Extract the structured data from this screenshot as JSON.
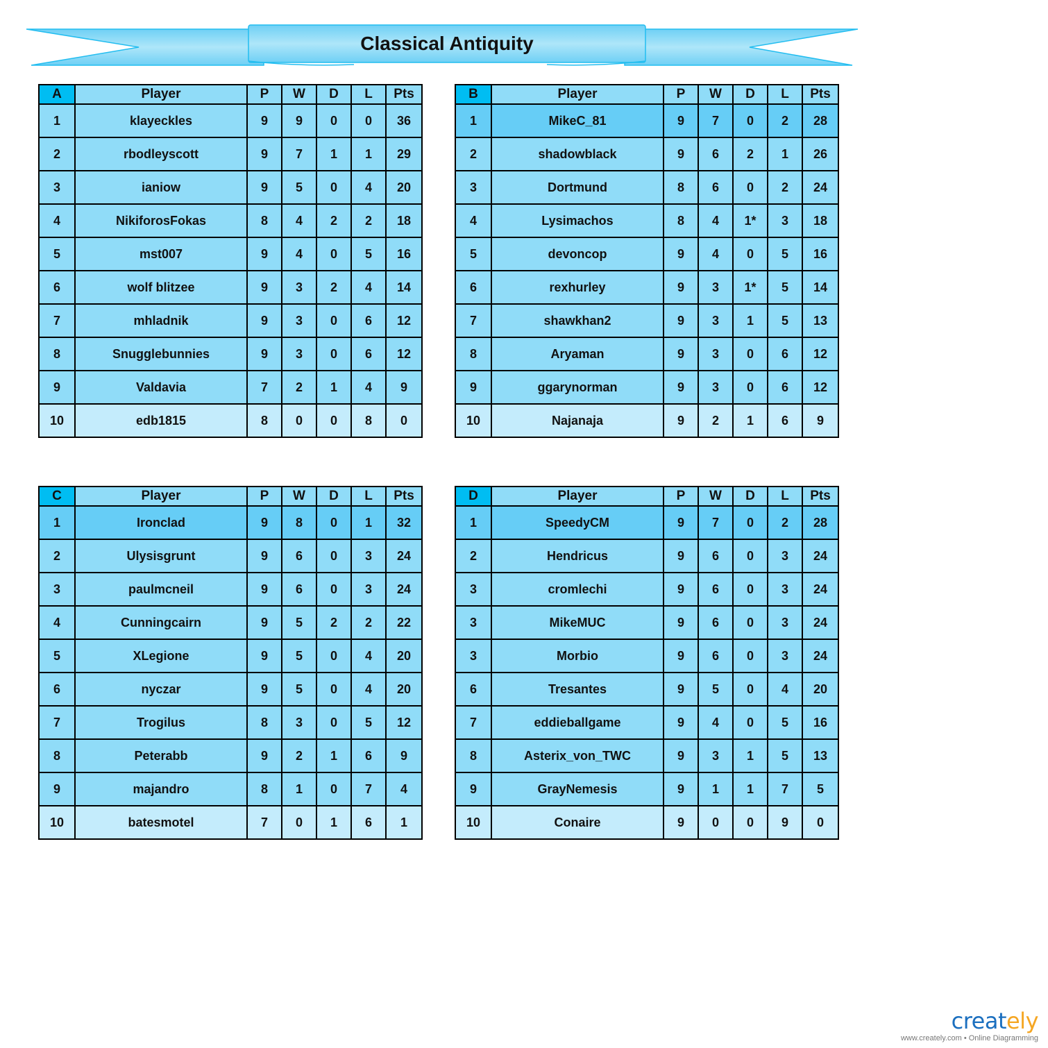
{
  "title": "Classical Antiquity",
  "colors": {
    "header_letter": "#00bdf2",
    "cell": "#90dcf8",
    "leader": "#66cdf6",
    "bottom": "#c4ecfc",
    "banner": "#8ad9f6"
  },
  "columns": [
    "Player",
    "P",
    "W",
    "D",
    "L",
    "Pts"
  ],
  "groups": [
    {
      "letter": "A",
      "leader_highlight": false,
      "rows": [
        [
          "1",
          "klayeckles",
          "9",
          "9",
          "0",
          "0",
          "36"
        ],
        [
          "2",
          "rbodleyscott",
          "9",
          "7",
          "1",
          "1",
          "29"
        ],
        [
          "3",
          "ianiow",
          "9",
          "5",
          "0",
          "4",
          "20"
        ],
        [
          "4",
          "NikiforosFokas",
          "8",
          "4",
          "2",
          "2",
          "18"
        ],
        [
          "5",
          "mst007",
          "9",
          "4",
          "0",
          "5",
          "16"
        ],
        [
          "6",
          "wolf blitzee",
          "9",
          "3",
          "2",
          "4",
          "14"
        ],
        [
          "7",
          "mhladnik",
          "9",
          "3",
          "0",
          "6",
          "12"
        ],
        [
          "8",
          "Snugglebunnies",
          "9",
          "3",
          "0",
          "6",
          "12"
        ],
        [
          "9",
          "Valdavia",
          "7",
          "2",
          "1",
          "4",
          "9"
        ],
        [
          "10",
          "edb1815",
          "8",
          "0",
          "0",
          "8",
          "0"
        ]
      ]
    },
    {
      "letter": "B",
      "leader_highlight": true,
      "rows": [
        [
          "1",
          "MikeC_81",
          "9",
          "7",
          "0",
          "2",
          "28"
        ],
        [
          "2",
          "shadowblack",
          "9",
          "6",
          "2",
          "1",
          "26"
        ],
        [
          "3",
          "Dortmund",
          "8",
          "6",
          "0",
          "2",
          "24"
        ],
        [
          "4",
          "Lysimachos",
          "8",
          "4",
          "1*",
          "3",
          "18"
        ],
        [
          "5",
          "devoncop",
          "9",
          "4",
          "0",
          "5",
          "16"
        ],
        [
          "6",
          "rexhurley",
          "9",
          "3",
          "1*",
          "5",
          "14"
        ],
        [
          "7",
          "shawkhan2",
          "9",
          "3",
          "1",
          "5",
          "13"
        ],
        [
          "8",
          "Aryaman",
          "9",
          "3",
          "0",
          "6",
          "12"
        ],
        [
          "9",
          "ggarynorman",
          "9",
          "3",
          "0",
          "6",
          "12"
        ],
        [
          "10",
          "Najanaja",
          "9",
          "2",
          "1",
          "6",
          "9"
        ]
      ]
    },
    {
      "letter": "C",
      "leader_highlight": true,
      "rows": [
        [
          "1",
          "Ironclad",
          "9",
          "8",
          "0",
          "1",
          "32"
        ],
        [
          "2",
          "Ulysisgrunt",
          "9",
          "6",
          "0",
          "3",
          "24"
        ],
        [
          "3",
          "paulmcneil",
          "9",
          "6",
          "0",
          "3",
          "24"
        ],
        [
          "4",
          "Cunningcairn",
          "9",
          "5",
          "2",
          "2",
          "22"
        ],
        [
          "5",
          "XLegione",
          "9",
          "5",
          "0",
          "4",
          "20"
        ],
        [
          "6",
          "nyczar",
          "9",
          "5",
          "0",
          "4",
          "20"
        ],
        [
          "7",
          "Trogilus",
          "8",
          "3",
          "0",
          "5",
          "12"
        ],
        [
          "8",
          "Peterabb",
          "9",
          "2",
          "1",
          "6",
          "9"
        ],
        [
          "9",
          "majandro",
          "8",
          "1",
          "0",
          "7",
          "4"
        ],
        [
          "10",
          "batesmotel",
          "7",
          "0",
          "1",
          "6",
          "1"
        ]
      ]
    },
    {
      "letter": "D",
      "leader_highlight": true,
      "rows": [
        [
          "1",
          "SpeedyCM",
          "9",
          "7",
          "0",
          "2",
          "28"
        ],
        [
          "2",
          "Hendricus",
          "9",
          "6",
          "0",
          "3",
          "24"
        ],
        [
          "3",
          "cromlechi",
          "9",
          "6",
          "0",
          "3",
          "24"
        ],
        [
          "3",
          "MikeMUC",
          "9",
          "6",
          "0",
          "3",
          "24"
        ],
        [
          "3",
          "Morbio",
          "9",
          "6",
          "0",
          "3",
          "24"
        ],
        [
          "6",
          "Tresantes",
          "9",
          "5",
          "0",
          "4",
          "20"
        ],
        [
          "7",
          "eddieballgame",
          "9",
          "4",
          "0",
          "5",
          "16"
        ],
        [
          "8",
          "Asterix_von_TWC",
          "9",
          "3",
          "1",
          "5",
          "13"
        ],
        [
          "9",
          "GrayNemesis",
          "9",
          "1",
          "1",
          "7",
          "5"
        ],
        [
          "10",
          "Conaire",
          "9",
          "0",
          "0",
          "9",
          "0"
        ]
      ]
    }
  ],
  "logo": {
    "text_main": "creat",
    "text_accent": "ely",
    "tagline": "www.creately.com • Online Diagramming"
  }
}
